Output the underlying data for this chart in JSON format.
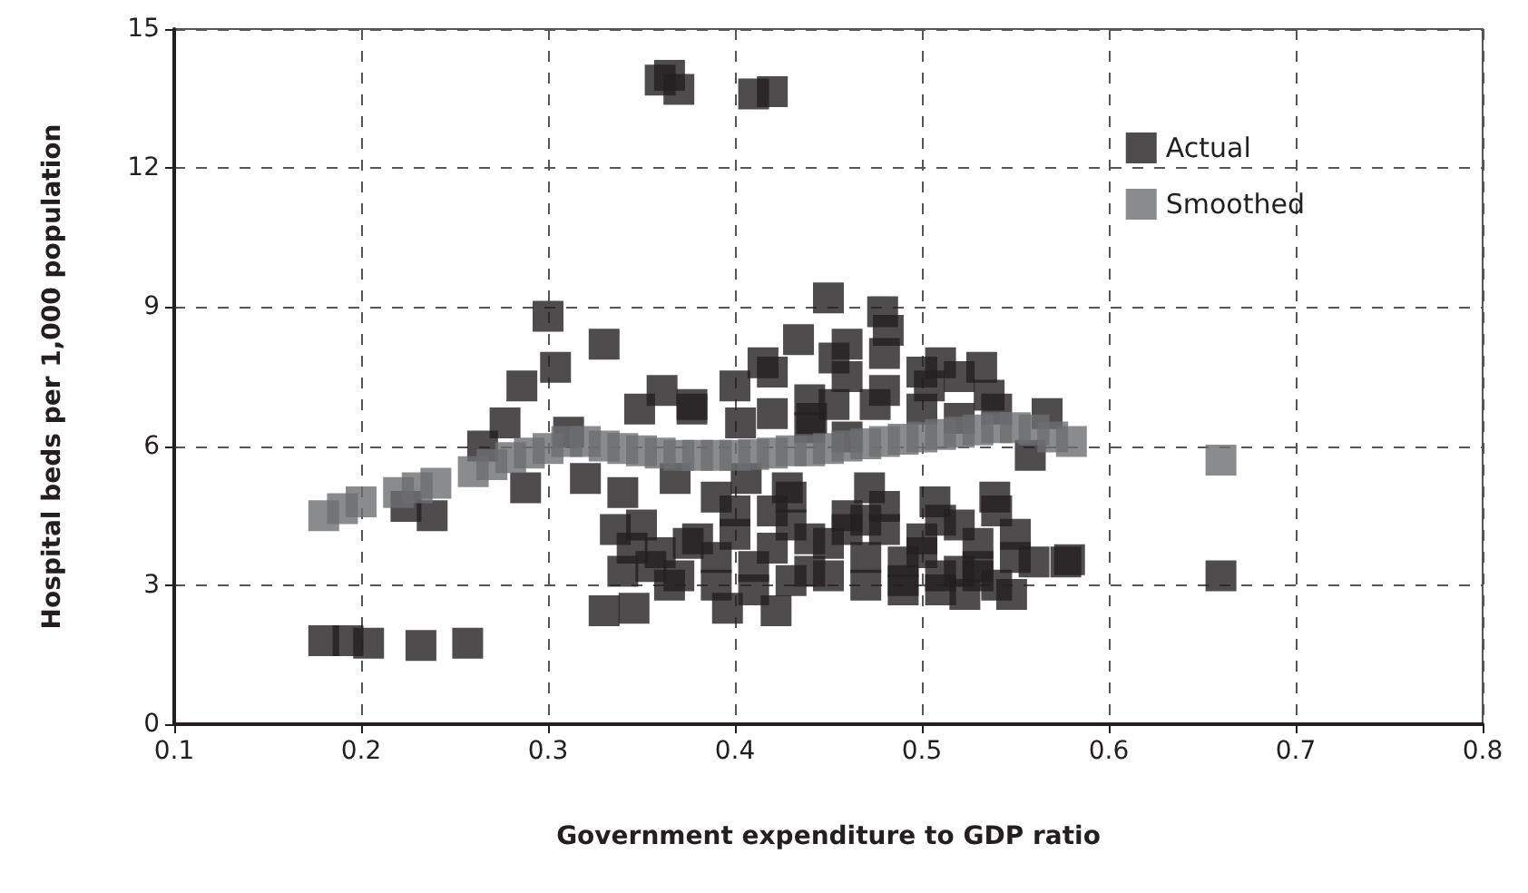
{
  "chart_data": {
    "type": "scatter",
    "xlabel": "Government expenditure to GDP ratio",
    "ylabel": "Hospital beds per 1,000 population",
    "xlim": [
      0.1,
      0.8
    ],
    "xticks": [
      0.1,
      0.2,
      0.3,
      0.4,
      0.5,
      0.6,
      0.7,
      0.8
    ],
    "ylim": [
      0,
      15
    ],
    "yticks": [
      0,
      3,
      6,
      9,
      12,
      15
    ],
    "grid": true,
    "legend": "top right",
    "marker": "square",
    "series": [
      {
        "name": "Actual",
        "color": "#231f20",
        "x": [
          0.36,
          0.365,
          0.37,
          0.41,
          0.42,
          0.18,
          0.193,
          0.204,
          0.232,
          0.257,
          0.224,
          0.238,
          0.288,
          0.265,
          0.277,
          0.286,
          0.304,
          0.3,
          0.33,
          0.311,
          0.33,
          0.346,
          0.32,
          0.34,
          0.368,
          0.349,
          0.361,
          0.377,
          0.336,
          0.345,
          0.355,
          0.365,
          0.375,
          0.34,
          0.35,
          0.36,
          0.37,
          0.38,
          0.45,
          0.479,
          0.482,
          0.434,
          0.415,
          0.4,
          0.377,
          0.453,
          0.453,
          0.403,
          0.441,
          0.475,
          0.51,
          0.532,
          0.536,
          0.504,
          0.567,
          0.558,
          0.406,
          0.428,
          0.472,
          0.507,
          0.539,
          0.577,
          0.396,
          0.422,
          0.523,
          0.548,
          0.579,
          0.66,
          0.39,
          0.4,
          0.41,
          0.42,
          0.43,
          0.44,
          0.45,
          0.46,
          0.47,
          0.48,
          0.49,
          0.5,
          0.51,
          0.52,
          0.53,
          0.54,
          0.55,
          0.56,
          0.39,
          0.41,
          0.43,
          0.45,
          0.47,
          0.49,
          0.51,
          0.53,
          0.55,
          0.4,
          0.42,
          0.44,
          0.46,
          0.48,
          0.5,
          0.52,
          0.54,
          0.42,
          0.44,
          0.46,
          0.48,
          0.5,
          0.52,
          0.54,
          0.39,
          0.43,
          0.47,
          0.49,
          0.51,
          0.53,
          0.46,
          0.48,
          0.5,
          0.52,
          0.42,
          0.44,
          0.46
        ],
        "values": [
          13.9,
          14.0,
          13.7,
          13.6,
          13.65,
          1.8,
          1.8,
          1.75,
          1.7,
          1.75,
          4.7,
          4.5,
          5.1,
          6.0,
          6.5,
          7.3,
          7.7,
          8.8,
          8.2,
          6.3,
          2.45,
          2.5,
          5.3,
          5.0,
          5.3,
          6.8,
          7.2,
          6.8,
          4.2,
          3.8,
          3.4,
          3.0,
          3.9,
          3.3,
          4.3,
          3.7,
          3.2,
          4.0,
          9.2,
          8.9,
          8.5,
          8.3,
          7.8,
          7.3,
          6.9,
          7.9,
          6.9,
          6.5,
          6.6,
          6.9,
          7.8,
          7.7,
          7.1,
          7.3,
          6.7,
          5.8,
          5.3,
          5.1,
          5.1,
          4.8,
          4.9,
          3.5,
          2.5,
          2.45,
          2.8,
          2.8,
          3.55,
          3.2,
          3.6,
          4.1,
          3.4,
          3.8,
          4.3,
          3.3,
          3.9,
          4.5,
          3.6,
          4.2,
          3.1,
          3.7,
          4.4,
          3.3,
          3.9,
          3.0,
          4.1,
          3.5,
          3.0,
          2.9,
          3.1,
          3.2,
          3.0,
          3.5,
          3.2,
          3.4,
          3.6,
          4.6,
          4.6,
          4.0,
          4.2,
          4.7,
          4.0,
          4.3,
          4.6,
          6.7,
          7.0,
          7.5,
          7.2,
          6.8,
          7.5,
          6.8,
          4.9,
          4.9,
          4.4,
          2.9,
          2.9,
          3.2,
          8.2,
          8.0,
          7.6,
          6.6,
          7.6,
          6.4,
          6.2
        ]
      },
      {
        "name": "Smoothed",
        "color": "#6d6e71",
        "x": [
          0.18,
          0.19,
          0.2,
          0.22,
          0.23,
          0.24,
          0.26,
          0.27,
          0.28,
          0.29,
          0.3,
          0.31,
          0.32,
          0.33,
          0.34,
          0.35,
          0.36,
          0.37,
          0.38,
          0.39,
          0.4,
          0.41,
          0.42,
          0.43,
          0.44,
          0.45,
          0.46,
          0.47,
          0.48,
          0.49,
          0.5,
          0.51,
          0.52,
          0.53,
          0.54,
          0.55,
          0.56,
          0.57,
          0.58,
          0.66
        ],
        "values": [
          4.5,
          4.65,
          4.8,
          5.0,
          5.1,
          5.2,
          5.45,
          5.6,
          5.75,
          5.85,
          5.95,
          6.1,
          6.1,
          6.0,
          5.95,
          5.9,
          5.85,
          5.8,
          5.8,
          5.8,
          5.8,
          5.82,
          5.85,
          5.9,
          5.9,
          5.95,
          6.0,
          6.05,
          6.1,
          6.15,
          6.2,
          6.25,
          6.3,
          6.35,
          6.4,
          6.4,
          6.35,
          6.2,
          6.1,
          5.7
        ]
      }
    ]
  }
}
